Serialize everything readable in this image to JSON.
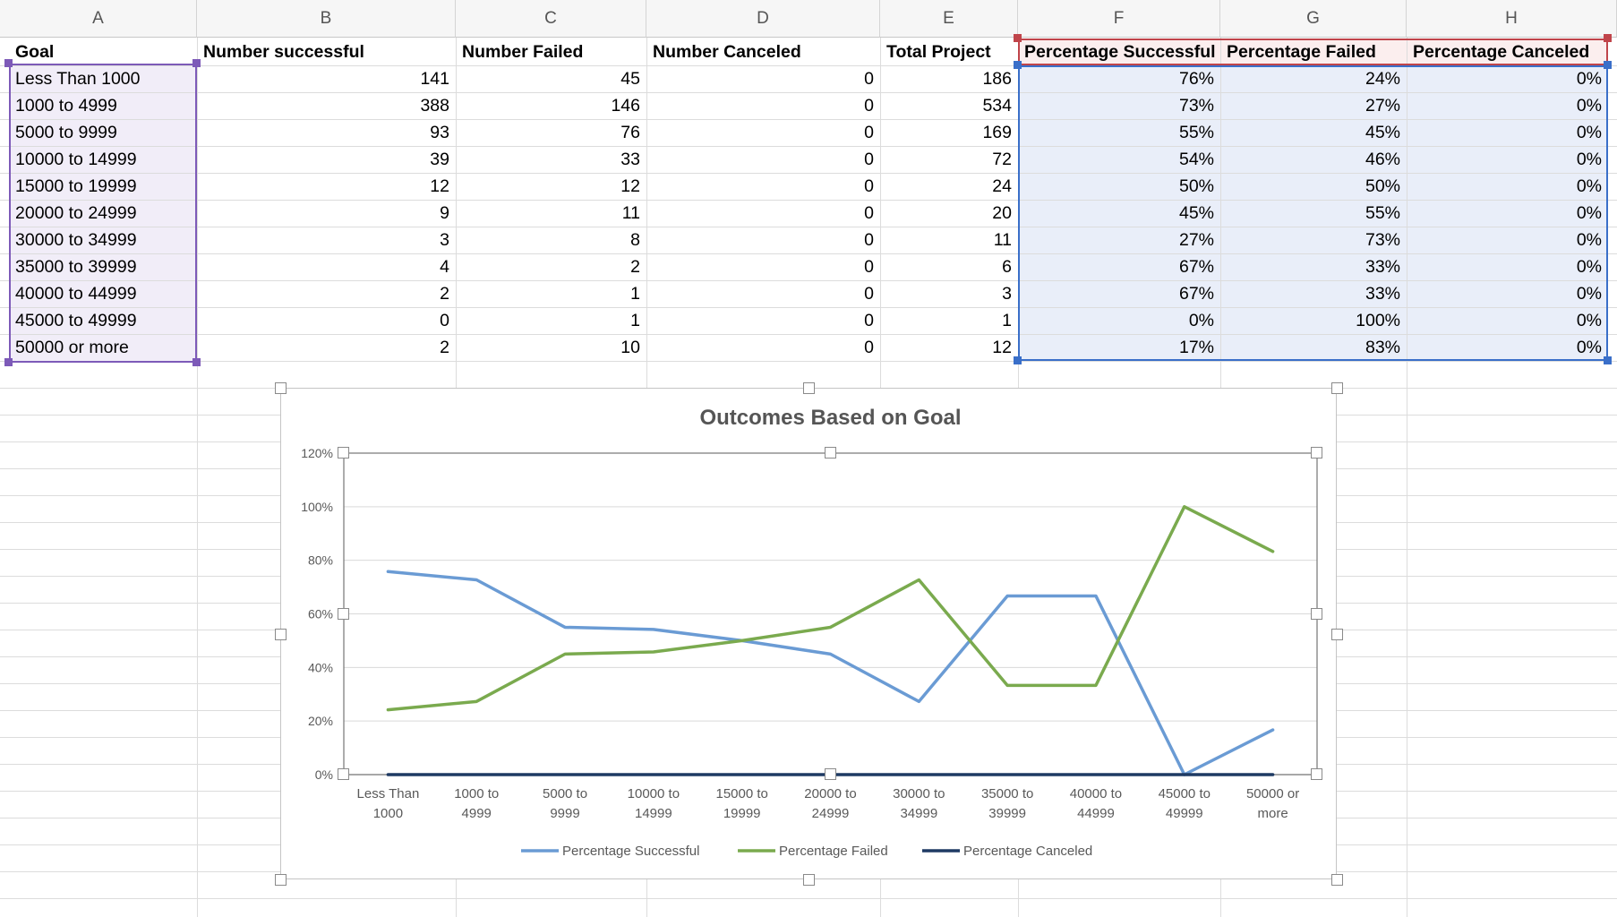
{
  "columns": [
    "A",
    "B",
    "C",
    "D",
    "E",
    "F",
    "G",
    "H"
  ],
  "headers": [
    "Goal",
    "Number successful",
    "Number Failed",
    "Number Canceled",
    "Total Project",
    "Percentage Successful",
    "Percentage Failed",
    "Percentage Canceled"
  ],
  "rows": [
    [
      "Less Than 1000",
      "141",
      "45",
      "0",
      "186",
      "76%",
      "24%",
      "0%"
    ],
    [
      "1000 to 4999",
      "388",
      "146",
      "0",
      "534",
      "73%",
      "27%",
      "0%"
    ],
    [
      "5000 to 9999",
      "93",
      "76",
      "0",
      "169",
      "55%",
      "45%",
      "0%"
    ],
    [
      "10000 to 14999",
      "39",
      "33",
      "0",
      "72",
      "54%",
      "46%",
      "0%"
    ],
    [
      "15000 to 19999",
      "12",
      "12",
      "0",
      "24",
      "50%",
      "50%",
      "0%"
    ],
    [
      "20000 to 24999",
      "9",
      "11",
      "0",
      "20",
      "45%",
      "55%",
      "0%"
    ],
    [
      "30000 to 34999",
      "3",
      "8",
      "0",
      "11",
      "27%",
      "73%",
      "0%"
    ],
    [
      "35000 to 39999",
      "4",
      "2",
      "0",
      "6",
      "67%",
      "33%",
      "0%"
    ],
    [
      "40000 to 44999",
      "2",
      "1",
      "0",
      "3",
      "67%",
      "33%",
      "0%"
    ],
    [
      "45000 to 49999",
      "0",
      "1",
      "0",
      "1",
      "0%",
      "100%",
      "0%"
    ],
    [
      "50000 or more",
      "2",
      "10",
      "0",
      "12",
      "17%",
      "83%",
      "0%"
    ]
  ],
  "chart_data": {
    "type": "line",
    "title": "Outcomes Based on Goal",
    "categories": [
      [
        "Less Than",
        "1000"
      ],
      [
        "1000 to",
        "4999"
      ],
      [
        "5000 to",
        "9999"
      ],
      [
        "10000 to",
        "14999"
      ],
      [
        "15000 to",
        "19999"
      ],
      [
        "20000 to",
        "24999"
      ],
      [
        "30000 to",
        "34999"
      ],
      [
        "35000 to",
        "39999"
      ],
      [
        "40000 to",
        "44999"
      ],
      [
        "45000 to",
        "49999"
      ],
      [
        "50000 or",
        "more"
      ]
    ],
    "series": [
      {
        "name": "Percentage Successful",
        "color": "#6a9bd4",
        "values": [
          75.8,
          72.7,
          55.0,
          54.2,
          50.0,
          45.0,
          27.3,
          66.7,
          66.7,
          0,
          16.7
        ]
      },
      {
        "name": "Percentage Failed",
        "color": "#7aaa4e",
        "values": [
          24.2,
          27.3,
          45.0,
          45.8,
          50.0,
          55.0,
          72.7,
          33.3,
          33.3,
          100,
          83.3
        ]
      },
      {
        "name": "Percentage Canceled",
        "color": "#1e3a63",
        "values": [
          0,
          0,
          0,
          0,
          0,
          0,
          0,
          0,
          0,
          0,
          0
        ]
      }
    ],
    "yticks": [
      "0%",
      "20%",
      "40%",
      "60%",
      "80%",
      "100%",
      "120%"
    ],
    "ylim": [
      0,
      120
    ],
    "legend_position": "bottom",
    "grid": true
  }
}
